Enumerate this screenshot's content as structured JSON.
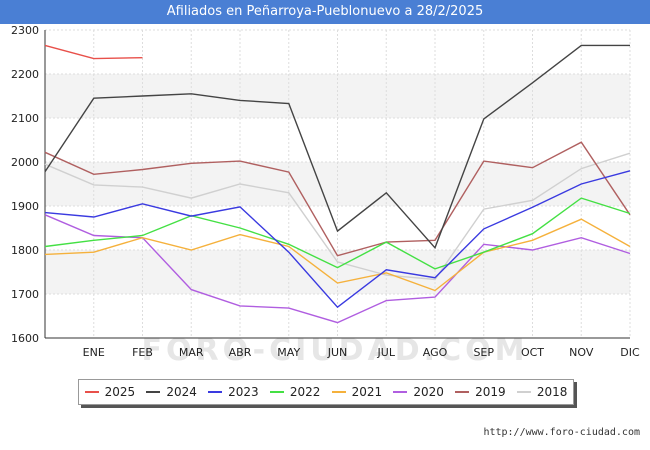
{
  "page": {
    "title": "Afiliados en Peñarroya-Pueblonuevo a 28/2/2025",
    "watermark_text": "FORO-CIUDAD.COM",
    "site_url": "http://www.foro-ciudad.com"
  },
  "chart_data": {
    "type": "line",
    "title": "Afiliados en Peñarroya-Pueblonuevo a 28/2/2025",
    "categories": [
      "",
      "ENE",
      "FEB",
      "MAR",
      "ABR",
      "MAY",
      "JUN",
      "JUL",
      "AGO",
      "SEP",
      "OCT",
      "NOV",
      "DIC"
    ],
    "ylim": [
      1600,
      2300
    ],
    "yticks": [
      1600,
      1700,
      1800,
      1900,
      2000,
      2100,
      2200,
      2300
    ],
    "grid": true,
    "legend_position": "bottom",
    "series": [
      {
        "name": "2025",
        "color": "#e8504a",
        "values": [
          2265,
          2235,
          2237,
          null,
          null,
          null,
          null,
          null,
          null,
          null,
          null,
          null,
          null
        ]
      },
      {
        "name": "2024",
        "color": "#444444",
        "values": [
          1978,
          2145,
          2150,
          2155,
          2140,
          2133,
          1843,
          1930,
          1805,
          2098,
          2180,
          2265,
          2265
        ]
      },
      {
        "name": "2023",
        "color": "#3a3ae0",
        "values": [
          1885,
          1875,
          1905,
          1877,
          1898,
          1795,
          1670,
          1755,
          1737,
          1848,
          1897,
          1950,
          1980
        ]
      },
      {
        "name": "2022",
        "color": "#44e044",
        "values": [
          1808,
          1822,
          1833,
          1878,
          1850,
          1813,
          1760,
          1818,
          1757,
          1795,
          1837,
          1918,
          1883
        ]
      },
      {
        "name": "2021",
        "color": "#f5b13c",
        "values": [
          1790,
          1795,
          1828,
          1800,
          1835,
          1808,
          1725,
          1748,
          1708,
          1795,
          1822,
          1870,
          1808
        ]
      },
      {
        "name": "2020",
        "color": "#b05ee0",
        "values": [
          1880,
          1833,
          1828,
          1710,
          1673,
          1668,
          1635,
          1685,
          1693,
          1813,
          1800,
          1828,
          1792
        ]
      },
      {
        "name": "2019",
        "color": "#b06060",
        "values": [
          2022,
          1972,
          1983,
          1997,
          2002,
          1977,
          1787,
          1818,
          1822,
          2002,
          1987,
          2045,
          1880
        ]
      },
      {
        "name": "2018",
        "color": "#d0d0d0",
        "values": [
          1995,
          1948,
          1943,
          1918,
          1950,
          1930,
          1773,
          1743,
          1733,
          1893,
          1913,
          1985,
          2020
        ]
      }
    ]
  }
}
